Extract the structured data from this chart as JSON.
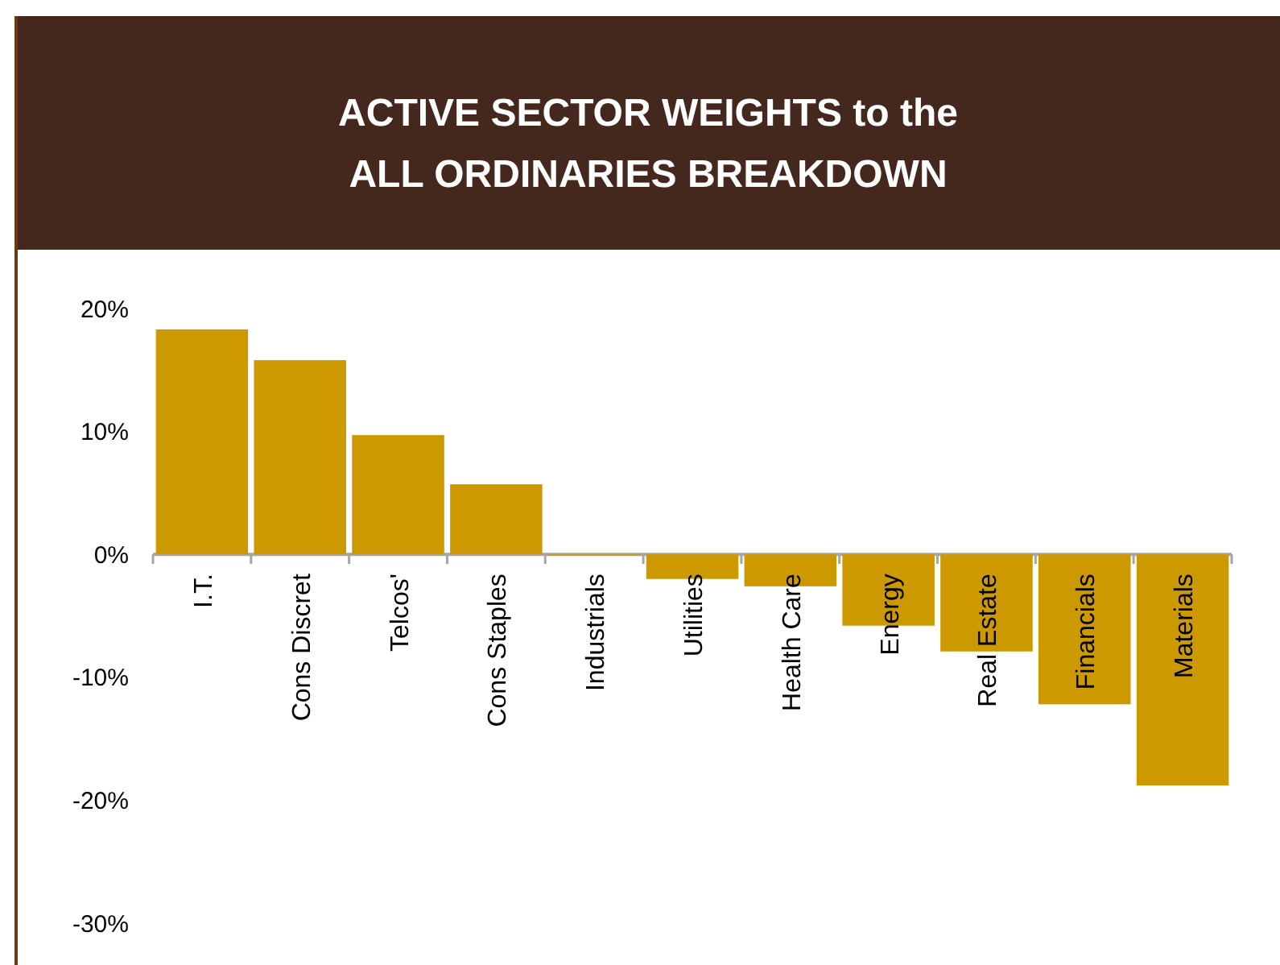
{
  "chart_data": {
    "type": "bar",
    "title": "ACTIVE SECTOR WEIGHTS to the\nALL ORDINARIES BREAKDOWN",
    "categories": [
      "I.T.",
      "Cons Discret",
      "Telcos'",
      "Cons Staples",
      "Industrials",
      "Utilities",
      "Health Care",
      "Energy",
      "Real Estate",
      "Financials",
      "Materials"
    ],
    "values": [
      18.3,
      15.8,
      9.7,
      5.7,
      -0.1,
      -2.0,
      -2.6,
      -5.8,
      -7.9,
      -12.2,
      -18.8
    ],
    "color": "#cc9900",
    "ylim": [
      -30,
      20
    ],
    "yticks": [
      {
        "value": -30,
        "label": "-30%"
      },
      {
        "value": -20,
        "label": "-20%"
      },
      {
        "value": -10,
        "label": "-10%"
      },
      {
        "value": 0,
        "label": "0%"
      },
      {
        "value": 10,
        "label": "10%"
      },
      {
        "value": 20,
        "label": "20%"
      }
    ],
    "grid": false
  }
}
